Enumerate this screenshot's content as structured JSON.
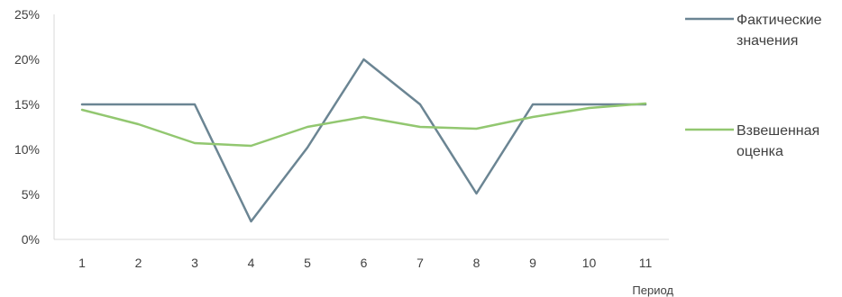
{
  "chart_data": {
    "type": "line",
    "title": "",
    "xlabel": "Период",
    "ylabel": "",
    "x": [
      "1",
      "2",
      "3",
      "4",
      "5",
      "6",
      "7",
      "8",
      "9",
      "10",
      "11"
    ],
    "y_ticks": [
      "0%",
      "5%",
      "10%",
      "15%",
      "20%",
      "25%"
    ],
    "ylim": [
      0,
      25
    ],
    "grid": false,
    "legend_position": "right",
    "series": [
      {
        "name_lines": [
          "Фактические",
          "значения"
        ],
        "color": "#6b8593",
        "values": [
          15,
          15,
          15,
          2,
          10.2,
          20,
          15,
          5.1,
          15,
          15,
          15
        ]
      },
      {
        "name_lines": [
          "Взвешенная",
          "оценка"
        ],
        "color": "#92c770",
        "values": [
          14.4,
          12.8,
          10.7,
          10.4,
          12.5,
          13.6,
          12.5,
          12.3,
          13.6,
          14.6,
          15.1
        ]
      }
    ]
  }
}
